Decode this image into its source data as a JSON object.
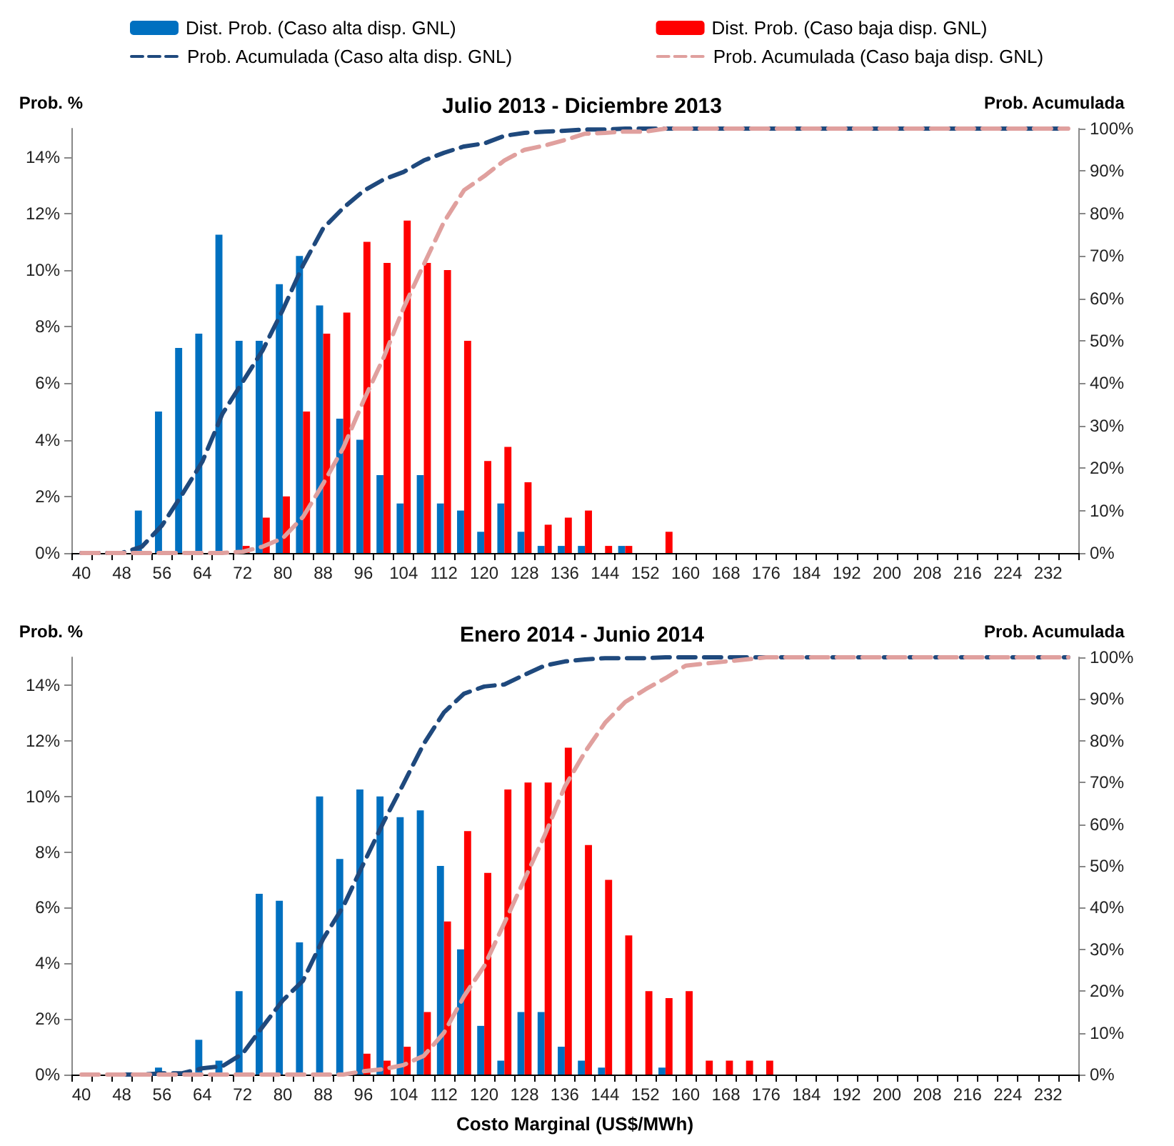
{
  "chart_data": [
    {
      "type": "bar",
      "title": "Julio 2013 - Diciembre 2013",
      "ylabel": "Prob. %",
      "y2label": "Prob. Acumulada",
      "categories": [
        "40",
        null,
        "48",
        null,
        "56",
        null,
        "64",
        null,
        "72",
        null,
        "80",
        null,
        "88",
        null,
        "96",
        null,
        "104",
        null,
        "112",
        null,
        "120",
        null,
        "128",
        null,
        "136",
        null,
        "144",
        null,
        "152",
        null,
        "160",
        null,
        "168",
        null,
        "176",
        null,
        "184",
        null,
        "192",
        null,
        "200",
        null,
        "208",
        null,
        "216",
        null,
        "224",
        null,
        "232",
        null
      ],
      "series": [
        {
          "name": "Dist. Prob. (Caso alta disp. GNL)",
          "color": "#0070c0",
          "values": [
            0,
            0,
            0,
            1.5,
            5,
            7.25,
            7.75,
            11.25,
            7.5,
            7.5,
            9.5,
            10.5,
            8.75,
            4.75,
            4,
            2.75,
            1.75,
            2.75,
            1.75,
            1.5,
            0.75,
            1.75,
            0.75,
            0.25,
            0.25,
            0.25,
            0,
            0.25,
            0,
            0,
            0,
            0,
            0,
            0,
            0,
            0,
            0,
            0,
            0,
            0,
            0,
            0,
            0,
            0,
            0,
            0,
            0,
            0,
            0,
            0
          ]
        },
        {
          "name": "Dist. Prob. (Caso baja disp. GNL)",
          "color": "#ff0000",
          "values": [
            0,
            0,
            0,
            0,
            0,
            0,
            0,
            0,
            0.25,
            1.25,
            2,
            5,
            7.75,
            8.5,
            11,
            10.25,
            11.75,
            10.25,
            10,
            7.5,
            3.25,
            3.75,
            2.5,
            1,
            1.25,
            1.5,
            0.25,
            0.25,
            0,
            0.75,
            0,
            0,
            0,
            0,
            0,
            0,
            0,
            0,
            0,
            0,
            0,
            0,
            0,
            0,
            0,
            0,
            0,
            0,
            0,
            0
          ]
        },
        {
          "name": "Prob. Acumulada (Caso alta disp. GNL)",
          "type": "line",
          "axis": "y2",
          "line_style": "dashed",
          "color": "#1f497d",
          "values": [
            0,
            0,
            0,
            1.5,
            6.5,
            13.8,
            21.5,
            32.8,
            40.3,
            47.8,
            57.3,
            67.8,
            76.5,
            81.3,
            85.3,
            88,
            89.8,
            92.5,
            94.3,
            95.8,
            96.5,
            98.3,
            99,
            99.3,
            99.5,
            99.8,
            99.8,
            100,
            100,
            100,
            100,
            100,
            100,
            100,
            100,
            100,
            100,
            100,
            100,
            100,
            100,
            100,
            100,
            100,
            100,
            100,
            100,
            100,
            100,
            100
          ]
        },
        {
          "name": "Prob. Acumulada (Caso baja disp. GNL)",
          "type": "line",
          "axis": "y2",
          "line_style": "dashed",
          "color": "#e0a09e",
          "values": [
            0,
            0,
            0,
            0,
            0,
            0,
            0,
            0,
            0.3,
            1.5,
            3.5,
            8.5,
            16.3,
            24.8,
            35.8,
            46,
            57.8,
            68,
            78,
            85.5,
            88.8,
            92.5,
            95,
            96,
            97.3,
            98.8,
            99,
            99.3,
            99.3,
            100,
            100,
            100,
            100,
            100,
            100,
            100,
            100,
            100,
            100,
            100,
            100,
            100,
            100,
            100,
            100,
            100,
            100,
            100,
            100,
            100
          ]
        }
      ],
      "ylim": [
        0,
        15
      ],
      "yticks": [
        {
          "value": 0,
          "label": "0%"
        },
        {
          "value": 2,
          "label": "2%"
        },
        {
          "value": 4,
          "label": "4%"
        },
        {
          "value": 6,
          "label": "6%"
        },
        {
          "value": 8,
          "label": "8%"
        },
        {
          "value": 10,
          "label": "10%"
        },
        {
          "value": 12,
          "label": "12%"
        },
        {
          "value": 14,
          "label": "14%"
        }
      ],
      "y2lim": [
        0,
        100
      ],
      "y2ticks": [
        {
          "value": 0,
          "label": "0%"
        },
        {
          "value": 10,
          "label": "10%"
        },
        {
          "value": 20,
          "label": "20%"
        },
        {
          "value": 30,
          "label": "30%"
        },
        {
          "value": 40,
          "label": "40%"
        },
        {
          "value": 50,
          "label": "50%"
        },
        {
          "value": 60,
          "label": "60%"
        },
        {
          "value": 70,
          "label": "70%"
        },
        {
          "value": 80,
          "label": "80%"
        },
        {
          "value": 90,
          "label": "90%"
        },
        {
          "value": 100,
          "label": "100%"
        }
      ],
      "grid": false,
      "legend": "top",
      "marker": "none"
    },
    {
      "type": "bar",
      "title": "Enero 2014 - Junio 2014",
      "ylabel": "Prob. %",
      "y2label": "Prob. Acumulada",
      "xlabel": "Costo Marginal (US$/MWh)",
      "categories": [
        "40",
        null,
        "48",
        null,
        "56",
        null,
        "64",
        null,
        "72",
        null,
        "80",
        null,
        "88",
        null,
        "96",
        null,
        "104",
        null,
        "112",
        null,
        "120",
        null,
        "128",
        null,
        "136",
        null,
        "144",
        null,
        "152",
        null,
        "160",
        null,
        "168",
        null,
        "176",
        null,
        "184",
        null,
        "192",
        null,
        "200",
        null,
        "208",
        null,
        "216",
        null,
        "224",
        null,
        "232",
        null
      ],
      "series": [
        {
          "color": "#0070c0",
          "values": [
            0,
            0,
            0,
            0,
            0.25,
            0,
            1.25,
            0.5,
            3,
            6.5,
            6.25,
            4.75,
            10,
            7.75,
            10.25,
            10,
            9.25,
            9.5,
            7.5,
            4.5,
            1.75,
            0.5,
            2.25,
            2.25,
            1,
            0.5,
            0.25,
            0,
            0,
            0.25,
            0,
            0,
            0,
            0,
            0,
            0,
            0,
            0,
            0,
            0,
            0,
            0,
            0,
            0,
            0,
            0,
            0,
            0,
            0,
            0
          ]
        },
        {
          "color": "#ff0000",
          "values": [
            0,
            0,
            0,
            0,
            0,
            0,
            0,
            0,
            0,
            0,
            0,
            0,
            0,
            0,
            0.75,
            0.5,
            1,
            2.25,
            5.5,
            8.75,
            7.25,
            10.25,
            10.5,
            10.5,
            11.75,
            8.25,
            7,
            5,
            3,
            2.75,
            3,
            0.5,
            0.5,
            0.5,
            0.5,
            0,
            0,
            0,
            0,
            0,
            0,
            0,
            0,
            0,
            0,
            0,
            0,
            0,
            0,
            0
          ]
        },
        {
          "type": "line",
          "axis": "y2",
          "line_style": "dashed",
          "color": "#1f497d",
          "values": [
            null,
            null,
            0,
            0,
            0.3,
            0.3,
            1.5,
            2,
            5,
            11.5,
            17.8,
            22.5,
            32.5,
            40.3,
            50.5,
            60.5,
            69.8,
            79.3,
            86.8,
            91.3,
            93,
            93.5,
            95.8,
            98,
            99,
            99.5,
            99.8,
            99.8,
            99.8,
            100,
            100,
            100,
            100,
            100,
            100,
            100,
            100,
            100,
            100,
            100,
            100,
            100,
            100,
            100,
            100,
            100,
            100,
            100,
            100,
            100
          ]
        },
        {
          "type": "line",
          "axis": "y2",
          "line_style": "dashed",
          "color": "#e0a09e",
          "values": [
            0,
            0,
            0,
            0,
            0,
            0,
            0,
            0,
            0,
            0,
            0,
            0,
            0,
            0,
            0.8,
            1.3,
            2.3,
            4.5,
            10,
            18.8,
            26,
            36.3,
            46.8,
            57.3,
            69,
            77.3,
            84.3,
            89.3,
            92.3,
            95,
            98,
            98.5,
            99,
            99.5,
            100,
            100,
            100,
            100,
            100,
            100,
            100,
            100,
            100,
            100,
            100,
            100,
            100,
            100,
            100,
            100
          ]
        }
      ],
      "ylim": [
        0,
        15
      ],
      "yticks": [
        {
          "value": 0,
          "label": "0%"
        },
        {
          "value": 2,
          "label": "2%"
        },
        {
          "value": 4,
          "label": "4%"
        },
        {
          "value": 6,
          "label": "6%"
        },
        {
          "value": 8,
          "label": "8%"
        },
        {
          "value": 10,
          "label": "10%"
        },
        {
          "value": 12,
          "label": "12%"
        },
        {
          "value": 14,
          "label": "14%"
        }
      ],
      "y2lim": [
        0,
        100
      ],
      "y2ticks": [
        {
          "value": 0,
          "label": "0%"
        },
        {
          "value": 10,
          "label": "10%"
        },
        {
          "value": 20,
          "label": "20%"
        },
        {
          "value": 30,
          "label": "30%"
        },
        {
          "value": 40,
          "label": "40%"
        },
        {
          "value": 50,
          "label": "50%"
        },
        {
          "value": 60,
          "label": "60%"
        },
        {
          "value": 70,
          "label": "70%"
        },
        {
          "value": 80,
          "label": "80%"
        },
        {
          "value": 90,
          "label": "90%"
        },
        {
          "value": 100,
          "label": "100%"
        }
      ],
      "grid": false,
      "marker": "none"
    }
  ]
}
